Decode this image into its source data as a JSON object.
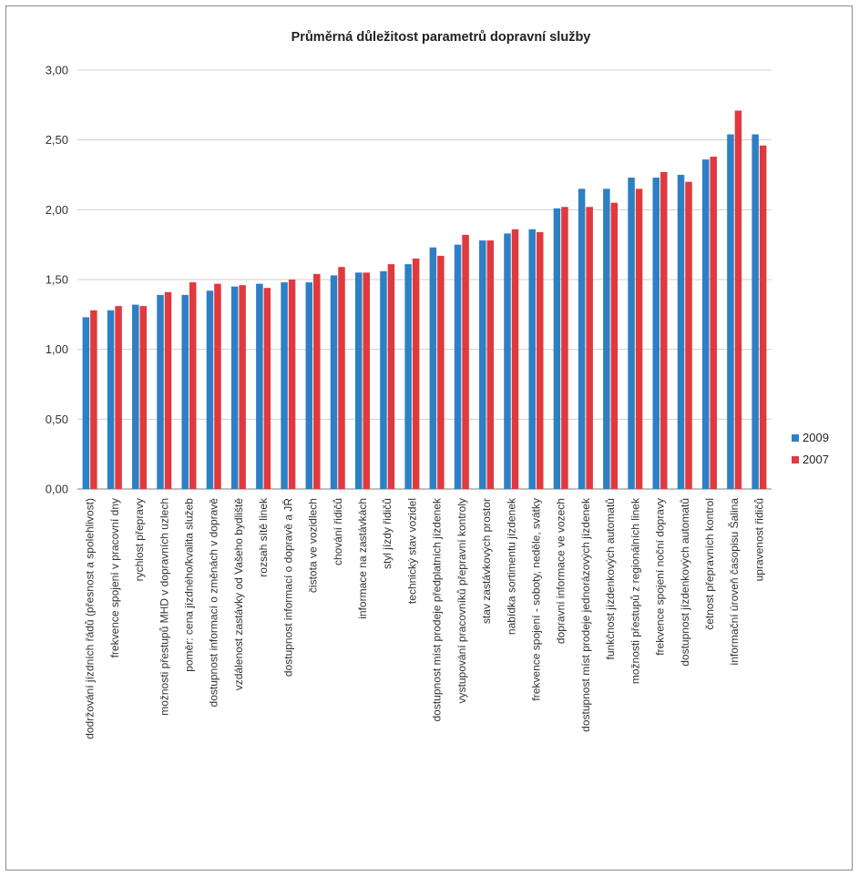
{
  "chart_data": {
    "type": "bar",
    "title": "Průměrná důležitost parametrů dopravní služby",
    "xlabel": "",
    "ylabel": "",
    "ylim": [
      0,
      3
    ],
    "yticks": [
      "0,00",
      "0,50",
      "1,00",
      "1,50",
      "2,00",
      "2,50",
      "3,00"
    ],
    "ytick_values": [
      0,
      0.5,
      1,
      1.5,
      2,
      2.5,
      3
    ],
    "grid": true,
    "legend_position": "right",
    "categories": [
      "dodržování jízdních řádů (přesnost a spolehlivost)",
      "frekvence spojení v pracovní dny",
      "rychlost přepravy",
      "možnosti přestupů MHD v dopravních uzlech",
      "poměr: cena jízdného/kvalita služeb",
      "dostupnost informací o změnách v dopravě",
      "vzdálenost zastávky od Vašeho bydliště",
      "rozsah sítě linek",
      "dostupnost informací o dopravě a JŘ",
      "čistota ve vozidlech",
      "chování řidičů",
      "informace na zastávkách",
      "styl jízdy řidičů",
      "technický stav vozidel",
      "dostupnost míst prodeje předplatních jízdenek",
      "vystupování pracovníků přepravní kontroly",
      "stav zastávkových prostor",
      "nabídka sortimentu jízdenek",
      "frekvence spojení - soboty, neděle, svátky",
      "dopravní informace ve vozech",
      "dostupnost míst prodeje jednorázových jízdenek",
      "funkčnost jízdenkových automatů",
      "možnosti přestupů z regionálních linek",
      "frekvence spojení noční dopravy",
      "dostupnost jízdenkových automatů",
      "četnost přepravních kontrol",
      "informační úroveň časopisu Šalina",
      "upravenost řidičů"
    ],
    "series": [
      {
        "name": "2009",
        "color": "#2e7fc4",
        "values": [
          1.23,
          1.28,
          1.32,
          1.39,
          1.39,
          1.42,
          1.45,
          1.47,
          1.48,
          1.48,
          1.53,
          1.55,
          1.56,
          1.61,
          1.73,
          1.75,
          1.78,
          1.83,
          1.86,
          2.01,
          2.15,
          2.15,
          2.23,
          2.23,
          2.25,
          2.36,
          2.54,
          2.54
        ]
      },
      {
        "name": "2007",
        "color": "#e0393e",
        "values": [
          1.28,
          1.31,
          1.31,
          1.41,
          1.48,
          1.47,
          1.46,
          1.44,
          1.5,
          1.54,
          1.59,
          1.55,
          1.61,
          1.65,
          1.67,
          1.82,
          1.78,
          1.86,
          1.84,
          2.02,
          2.02,
          2.05,
          2.15,
          2.27,
          2.2,
          2.38,
          2.71,
          2.46
        ]
      }
    ]
  }
}
